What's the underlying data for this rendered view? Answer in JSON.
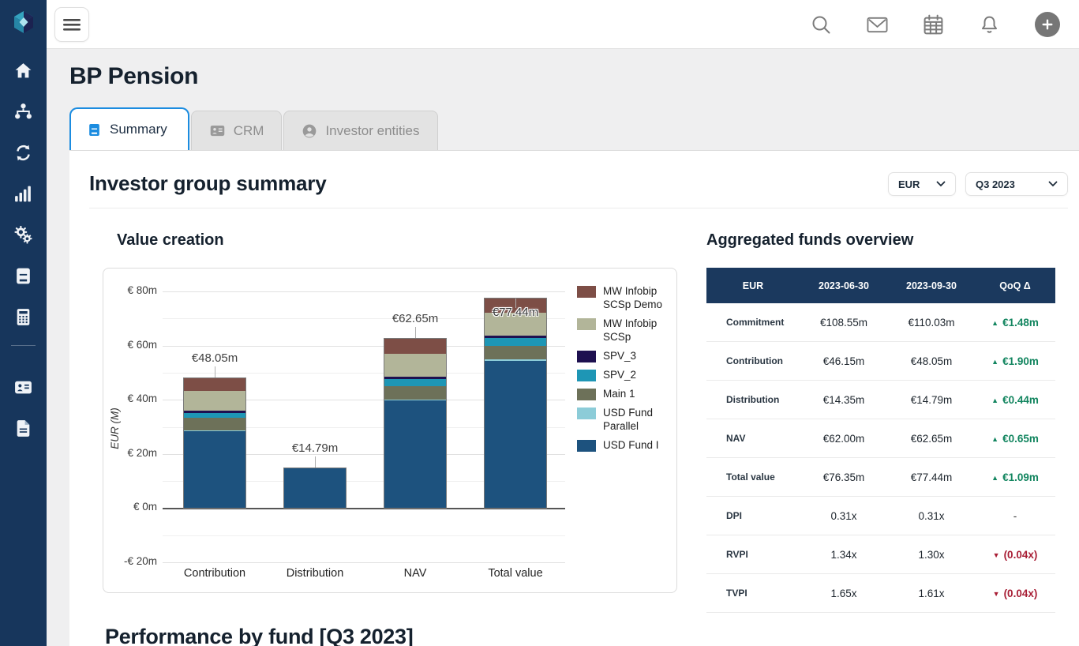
{
  "app": {
    "logo": "cube-logo"
  },
  "topbar": {
    "icons": [
      "search",
      "mail",
      "calendar",
      "notifications",
      "add"
    ]
  },
  "sidebar": {
    "icons": [
      "home",
      "organization",
      "sync",
      "analytics",
      "settings-gears",
      "ledger-book",
      "calculator",
      "contact-card",
      "document"
    ]
  },
  "page": {
    "title": "BP Pension",
    "tabs": [
      {
        "label": "Summary",
        "icon": "book",
        "active": true
      },
      {
        "label": "CRM",
        "icon": "id-card",
        "active": false
      },
      {
        "label": "Investor entities",
        "icon": "user-circle",
        "active": false
      }
    ],
    "section": {
      "title": "Investor group summary",
      "currency_select": {
        "value": "EUR"
      },
      "period_select": {
        "value": "Q3 2023"
      }
    },
    "bottom_heading": "Performance by fund [Q3 2023]"
  },
  "chart_data": {
    "type": "bar",
    "stacked": true,
    "title": "Value creation",
    "ylabel": "EUR (M)",
    "categories": [
      "Contribution",
      "Distribution",
      "NAV",
      "Total value"
    ],
    "series": [
      {
        "name": "USD Fund I",
        "color": "#1d527e",
        "values": [
          28.6,
          14.79,
          39.9,
          54.4
        ]
      },
      {
        "name": "USD Fund Parallel",
        "color": "#8cccd8",
        "values": [
          0.2,
          0,
          0.2,
          0.4
        ]
      },
      {
        "name": "Main 1",
        "color": "#6d7159",
        "values": [
          4.6,
          0,
          5.0,
          5.0
        ]
      },
      {
        "name": "SPV_2",
        "color": "#1e96b5",
        "values": [
          1.6,
          0,
          2.4,
          2.9
        ]
      },
      {
        "name": "SPV_3",
        "color": "#1e1050",
        "values": [
          0.9,
          0,
          1.0,
          1.0
        ]
      },
      {
        "name": "MW Infobip SCSp",
        "color": "#b2b599",
        "values": [
          7.3,
          0,
          8.6,
          8.4
        ]
      },
      {
        "name": "MW Infobip SCSp Demo",
        "color": "#7d4e46",
        "values": [
          4.85,
          0,
          5.55,
          5.34
        ]
      }
    ],
    "totals": [
      48.05,
      14.79,
      62.65,
      77.44
    ],
    "total_labels": [
      "€48.05m",
      "€14.79m",
      "€62.65m",
      "€77.44m"
    ],
    "label_inside": [
      false,
      false,
      false,
      true
    ],
    "ylim": [
      -20,
      80
    ],
    "yticks": [
      {
        "v": 80,
        "label": "€ 80m"
      },
      {
        "v": 60,
        "label": "€ 60m"
      },
      {
        "v": 40,
        "label": "€ 40m"
      },
      {
        "v": 20,
        "label": "€ 20m"
      },
      {
        "v": 0,
        "label": "€ 0m"
      },
      {
        "v": -20,
        "label": "-€ 20m"
      }
    ],
    "yticks_minor": [
      70,
      50,
      30,
      10,
      -10
    ],
    "grid": true,
    "legend_position": "right"
  },
  "funds_table": {
    "title": "Aggregated funds overview",
    "header": [
      "EUR",
      "2023-06-30",
      "2023-09-30",
      "QoQ Δ"
    ],
    "header_bg": "#1b395e",
    "up_glyph": "▲",
    "down_glyph": "▼",
    "colors": {
      "up": "#12855f",
      "down": "#a81e35"
    },
    "rows": [
      {
        "label": "Commitment",
        "v1": "€108.55m",
        "v2": "€110.03m",
        "delta": "€1.48m",
        "dir": "up"
      },
      {
        "label": "Contribution",
        "v1": "€46.15m",
        "v2": "€48.05m",
        "delta": "€1.90m",
        "dir": "up"
      },
      {
        "label": "Distribution",
        "v1": "€14.35m",
        "v2": "€14.79m",
        "delta": "€0.44m",
        "dir": "up"
      },
      {
        "label": "NAV",
        "v1": "€62.00m",
        "v2": "€62.65m",
        "delta": "€0.65m",
        "dir": "up"
      },
      {
        "label": "Total value",
        "v1": "€76.35m",
        "v2": "€77.44m",
        "delta": "€1.09m",
        "dir": "up"
      },
      {
        "label": "DPI",
        "v1": "0.31x",
        "v2": "0.31x",
        "delta": "-",
        "dir": "none"
      },
      {
        "label": "RVPI",
        "v1": "1.34x",
        "v2": "1.30x",
        "delta": "(0.04x)",
        "dir": "down"
      },
      {
        "label": "TVPI",
        "v1": "1.65x",
        "v2": "1.61x",
        "delta": "(0.04x)",
        "dir": "down"
      }
    ]
  },
  "colors": {
    "sidebar": "#17365c",
    "accent_blue": "#1b8ce0",
    "table_header": "#1b395e",
    "positive": "#12855f",
    "negative": "#a81e35",
    "page_bg": "#efeff0"
  }
}
